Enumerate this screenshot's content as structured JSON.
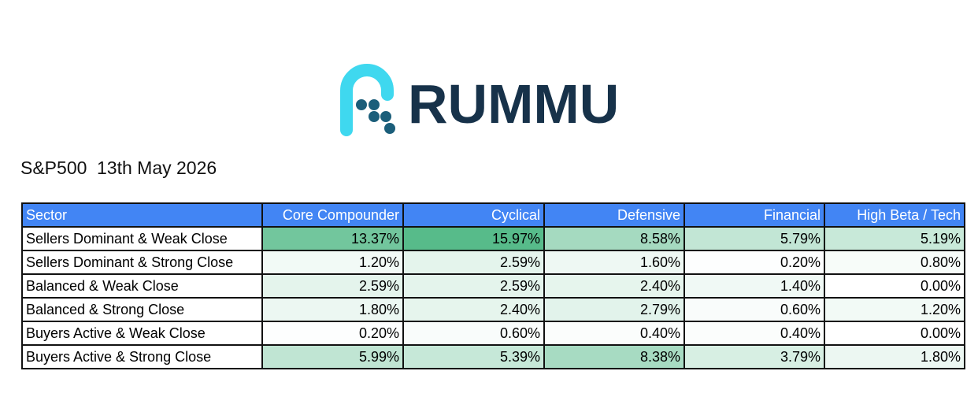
{
  "header": {
    "brand": "RUMMU",
    "index": "S&P500",
    "date": "13th May 2026"
  },
  "table": {
    "header": [
      "Sector",
      "Core Compounder",
      "Cyclical",
      "Defensive",
      "Financial",
      "High Beta / Tech"
    ],
    "rows": [
      [
        "Sellers Dominant & Weak Close",
        "13.37%",
        "15.97%",
        "8.58%",
        "5.79%",
        "5.19%"
      ],
      [
        "Sellers Dominant & Strong Close",
        "1.20%",
        "2.59%",
        "1.60%",
        "0.20%",
        "0.80%"
      ],
      [
        "Balanced & Weak Close",
        "2.59%",
        "2.59%",
        "2.40%",
        "1.40%",
        "0.00%"
      ],
      [
        "Balanced & Strong Close",
        "1.80%",
        "2.40%",
        "2.79%",
        "0.60%",
        "1.20%"
      ],
      [
        "Buyers Active & Weak Close",
        "0.20%",
        "0.60%",
        "0.40%",
        "0.40%",
        "0.00%"
      ],
      [
        "Buyers Active & Strong Close",
        "5.99%",
        "5.39%",
        "8.38%",
        "3.79%",
        "1.80%"
      ]
    ],
    "header_color": "#4285f4",
    "color_scale": {
      "min_color": "#ffffff",
      "max_color": "#57bb8a"
    }
  }
}
